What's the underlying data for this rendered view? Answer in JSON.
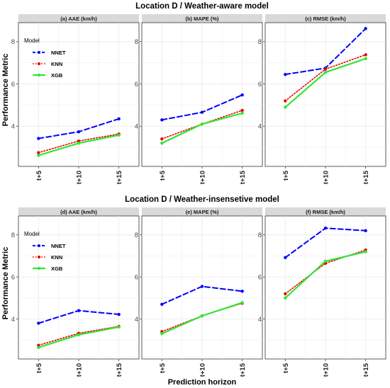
{
  "colors": {
    "NNET": "#0000ff",
    "KNN": "#e60000",
    "XGB": "#33e633",
    "strip": "#d9d9d9",
    "grid": "#ebebeb"
  },
  "common": {
    "xlabel": "Prediction horizon",
    "ylabel": "Performance Metric"
  },
  "legend": {
    "title": "Model",
    "items": [
      "NNET",
      "KNN",
      "XGB"
    ]
  },
  "chart_data": [
    {
      "type": "line",
      "title": "Location D / Weather-aware model",
      "categories": [
        "t+5",
        "t+10",
        "t+15"
      ],
      "grid": true,
      "panels": [
        {
          "strip": "(a) AAE (km/h)",
          "ylim": [
            2.1,
            8.9
          ],
          "yticks": [
            4,
            6,
            8
          ],
          "series": [
            {
              "name": "NNET",
              "values": [
                3.42,
                3.74,
                4.35
              ]
            },
            {
              "name": "KNN",
              "values": [
                2.75,
                3.3,
                3.63
              ]
            },
            {
              "name": "XGB",
              "values": [
                2.62,
                3.2,
                3.58
              ]
            }
          ]
        },
        {
          "strip": "(b) MAPE (%)",
          "ylim": [
            2.1,
            8.9
          ],
          "yticks": [
            4,
            6,
            8
          ],
          "series": [
            {
              "name": "NNET",
              "values": [
                4.3,
                4.66,
                5.48
              ]
            },
            {
              "name": "KNN",
              "values": [
                3.4,
                4.1,
                4.75
              ]
            },
            {
              "name": "XGB",
              "values": [
                3.2,
                4.1,
                4.62
              ]
            }
          ]
        },
        {
          "strip": "(c) RMSE (km/h)",
          "ylim": [
            2.1,
            8.9
          ],
          "yticks": [
            4,
            6,
            8
          ],
          "series": [
            {
              "name": "NNET",
              "values": [
                6.45,
                6.75,
                8.62
              ]
            },
            {
              "name": "KNN",
              "values": [
                5.2,
                6.7,
                7.38
              ]
            },
            {
              "name": "XGB",
              "values": [
                4.9,
                6.55,
                7.2
              ]
            }
          ]
        }
      ]
    },
    {
      "type": "line",
      "title": "Location D / Weather-insensetive model",
      "categories": [
        "t+5",
        "t+10",
        "t+15"
      ],
      "grid": true,
      "panels": [
        {
          "strip": "(d) AAE (km/h)",
          "ylim": [
            2.1,
            8.9
          ],
          "yticks": [
            4,
            6,
            8
          ],
          "series": [
            {
              "name": "NNET",
              "values": [
                3.8,
                4.4,
                4.22
              ]
            },
            {
              "name": "KNN",
              "values": [
                2.75,
                3.32,
                3.65
              ]
            },
            {
              "name": "XGB",
              "values": [
                2.65,
                3.25,
                3.62
              ]
            }
          ]
        },
        {
          "strip": "(e) MAPE (%)",
          "ylim": [
            2.1,
            8.9
          ],
          "yticks": [
            4,
            6,
            8
          ],
          "series": [
            {
              "name": "NNET",
              "values": [
                4.7,
                5.55,
                5.32
              ]
            },
            {
              "name": "KNN",
              "values": [
                3.4,
                4.15,
                4.75
              ]
            },
            {
              "name": "XGB",
              "values": [
                3.3,
                4.15,
                4.78
              ]
            }
          ]
        },
        {
          "strip": "(f) RMSE (km/h)",
          "ylim": [
            2.1,
            8.9
          ],
          "yticks": [
            4,
            6,
            8
          ],
          "series": [
            {
              "name": "NNET",
              "values": [
                6.92,
                8.32,
                8.2
              ]
            },
            {
              "name": "KNN",
              "values": [
                5.2,
                6.65,
                7.28
              ]
            },
            {
              "name": "XGB",
              "values": [
                5.0,
                6.75,
                7.2
              ]
            }
          ]
        }
      ]
    }
  ]
}
